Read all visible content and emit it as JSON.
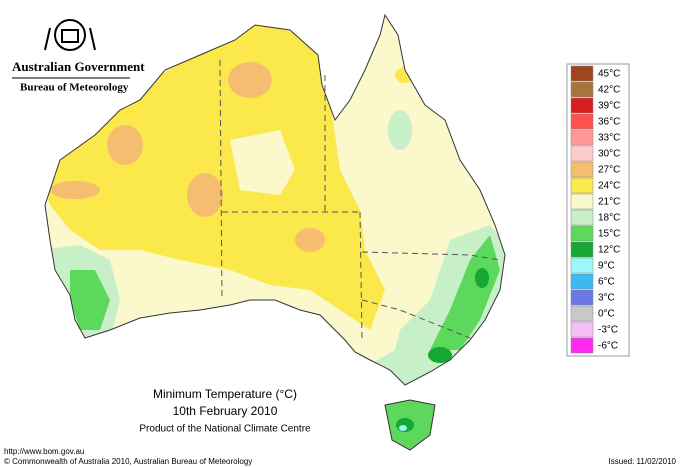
{
  "header": {
    "government": "Australian Government",
    "bureau": "Bureau of Meteorology"
  },
  "title": {
    "line1": "Minimum Temperature (°C)",
    "line2": "10th February 2010",
    "line3": "Product of the National Climate Centre"
  },
  "footer": {
    "url": "http://www.bom.gov.au",
    "copyright": "© Commonwealth of Australia 2010, Australian Bureau of Meteorology",
    "issued": "Issued: 11/02/2010"
  },
  "legend": {
    "items": [
      {
        "label": "45°C",
        "color": "#a0461e"
      },
      {
        "label": "42°C",
        "color": "#a8743e"
      },
      {
        "label": "39°C",
        "color": "#d71e1e"
      },
      {
        "label": "36°C",
        "color": "#ff5050"
      },
      {
        "label": "33°C",
        "color": "#ff9898"
      },
      {
        "label": "30°C",
        "color": "#ffcccc"
      },
      {
        "label": "27°C",
        "color": "#f5bd70"
      },
      {
        "label": "24°C",
        "color": "#fbe84a"
      },
      {
        "label": "21°C",
        "color": "#fbf8cc"
      },
      {
        "label": "18°C",
        "color": "#c8f0c8"
      },
      {
        "label": "15°C",
        "color": "#5cd85c"
      },
      {
        "label": "12°C",
        "color": "#17a833"
      },
      {
        "label": "9°C",
        "color": "#9ef7f7"
      },
      {
        "label": "6°C",
        "color": "#3fb8f0"
      },
      {
        "label": "3°C",
        "color": "#6a78e6"
      },
      {
        "label": "0°C",
        "color": "#c8c8c8"
      },
      {
        "label": "-3°C",
        "color": "#f5c0f5"
      },
      {
        "label": "-6°C",
        "color": "#ff2cf0"
      }
    ]
  }
}
